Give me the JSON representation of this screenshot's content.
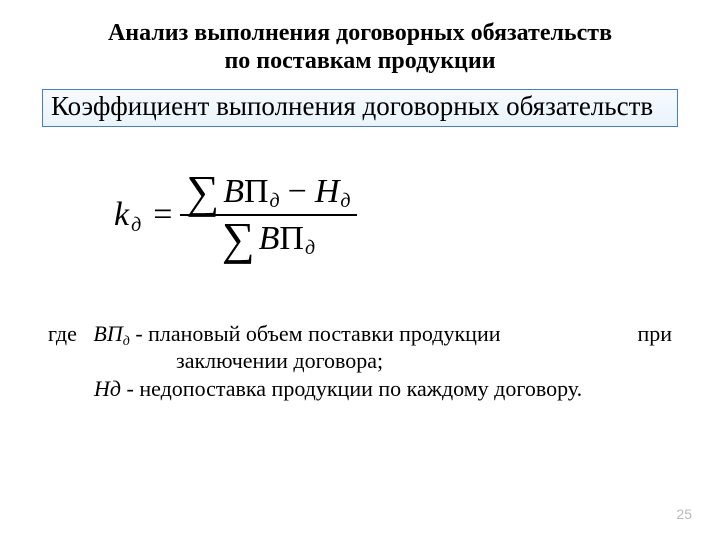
{
  "title_line1": "Анализ выполнения договорных обязательств",
  "title_line2": "по поставкам продукции",
  "subtitle": "Коэффициент выполнения договорных обязательств",
  "formula": {
    "k": "k",
    "ksub": "д",
    "eq": "=",
    "sigma": "∑",
    "vp_v": "В",
    "vp_p": "П",
    "sub_d": "д",
    "minus": "−",
    "n": "Н"
  },
  "legend": {
    "gde": "где",
    "vp_label": "ВП",
    "vp_sub": "д",
    "dash1_a": " - плановый объем поставки продукции",
    "dash1_b": "при",
    "line2": "заключении договора;",
    "nd_label": "Нд",
    "dash2": " - недопоставка продукции по каждому договору."
  },
  "page": "25"
}
